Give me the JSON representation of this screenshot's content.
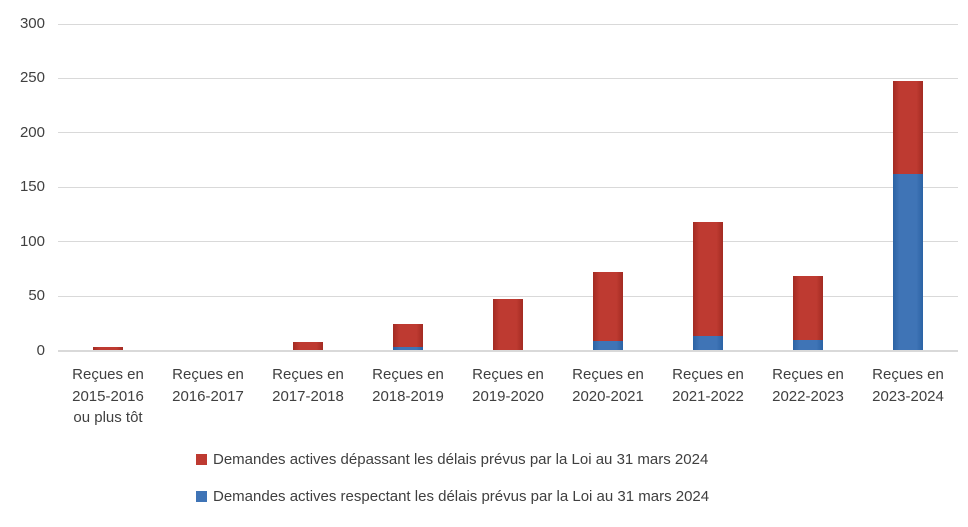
{
  "chart_data": {
    "type": "bar",
    "stacked": true,
    "title": "",
    "xlabel": "",
    "ylabel": "",
    "ylim": [
      0,
      300
    ],
    "yticks": [
      0,
      50,
      100,
      150,
      200,
      250,
      300
    ],
    "grid": true,
    "legend_position": "bottom-left",
    "categories": [
      [
        "Reçues en",
        "2015-2016",
        "ou plus tôt"
      ],
      [
        "Reçues en",
        "2016-2017"
      ],
      [
        "Reçues en",
        "2017-2018"
      ],
      [
        "Reçues en",
        "2018-2019"
      ],
      [
        "Reçues en",
        "2019-2020"
      ],
      [
        "Reçues en",
        "2020-2021"
      ],
      [
        "Reçues en",
        "2021-2022"
      ],
      [
        "Reçues en",
        "2022-2023"
      ],
      [
        "Reçues en",
        "2023-2024"
      ]
    ],
    "series": [
      {
        "name": "Demandes actives dépassant les délais prévus par la Loi au 31 mars 2024",
        "color": "#be3a31",
        "border_color": "#a32b22",
        "stack_position": "top",
        "values": [
          3,
          0,
          8,
          21,
          47,
          63,
          105,
          58,
          86
        ]
      },
      {
        "name": "Demandes actives respectant les délais prévus par la Loi au 31 mars 2024",
        "color": "#3f74b6",
        "border_color": "#2b63a4",
        "stack_position": "bottom",
        "values": [
          0,
          0,
          0,
          3,
          0,
          9,
          13,
          10,
          162
        ]
      }
    ],
    "totals": [
      3,
      0,
      8,
      24,
      47,
      72,
      118,
      68,
      248
    ],
    "colors": {
      "gridline": "#d9d9d9",
      "tick_text": "#404040",
      "legend_text": "#3f3f3f",
      "background": "#ffffff"
    }
  }
}
